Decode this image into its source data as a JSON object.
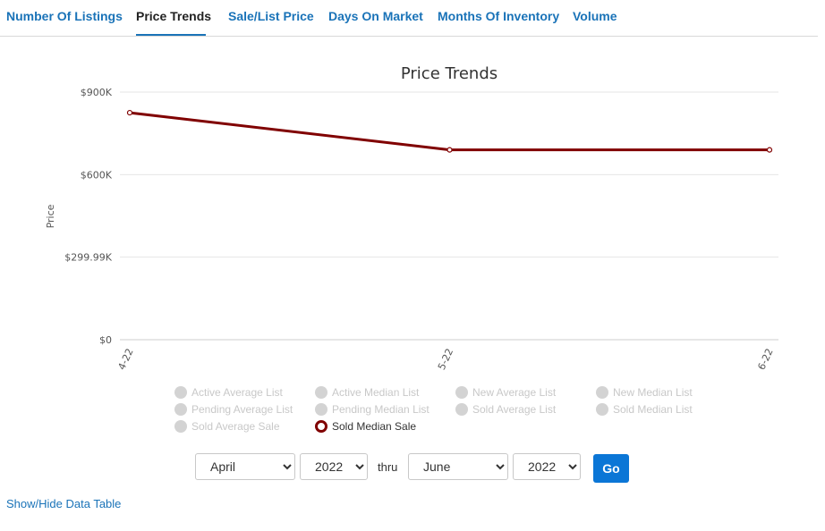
{
  "tabs": [
    {
      "label": "Number Of Listings",
      "active": false
    },
    {
      "label": "Price Trends",
      "active": true
    },
    {
      "label": "Sale/List Price",
      "active": false
    },
    {
      "label": "Days On Market",
      "active": false
    },
    {
      "label": "Months Of Inventory",
      "active": false
    },
    {
      "label": "Volume",
      "active": false
    }
  ],
  "chart_data": {
    "type": "line",
    "title": "Price Trends",
    "xlabel": "",
    "ylabel": "Price",
    "categories": [
      "4-22",
      "5-22",
      "6-22"
    ],
    "y_ticks": [
      "$0",
      "$299.99K",
      "$600K",
      "$900K"
    ],
    "y_tick_values": [
      0,
      299990,
      600000,
      900000
    ],
    "ylim": [
      0,
      900000
    ],
    "grid": true,
    "series": [
      {
        "name": "Sold Median Sale",
        "values": [
          825000,
          690000,
          690000
        ],
        "color": "#800000"
      }
    ],
    "legend_placement": "bottom",
    "legend": [
      {
        "label": "Active Average List",
        "enabled": false
      },
      {
        "label": "Active Median List",
        "enabled": false
      },
      {
        "label": "New Average List",
        "enabled": false
      },
      {
        "label": "New Median List",
        "enabled": false
      },
      {
        "label": "Pending Average List",
        "enabled": false
      },
      {
        "label": "Pending Median List",
        "enabled": false
      },
      {
        "label": "Sold Average List",
        "enabled": false
      },
      {
        "label": "Sold Median List",
        "enabled": false
      },
      {
        "label": "Sold Average Sale",
        "enabled": false
      },
      {
        "label": "Sold Median Sale",
        "enabled": true
      }
    ]
  },
  "controls": {
    "from_month": "April",
    "from_year": "2022",
    "thru_label": "thru",
    "to_month": "June",
    "to_year": "2022",
    "go_label": "Go"
  },
  "show_hide_label": "Show/Hide Data Table"
}
